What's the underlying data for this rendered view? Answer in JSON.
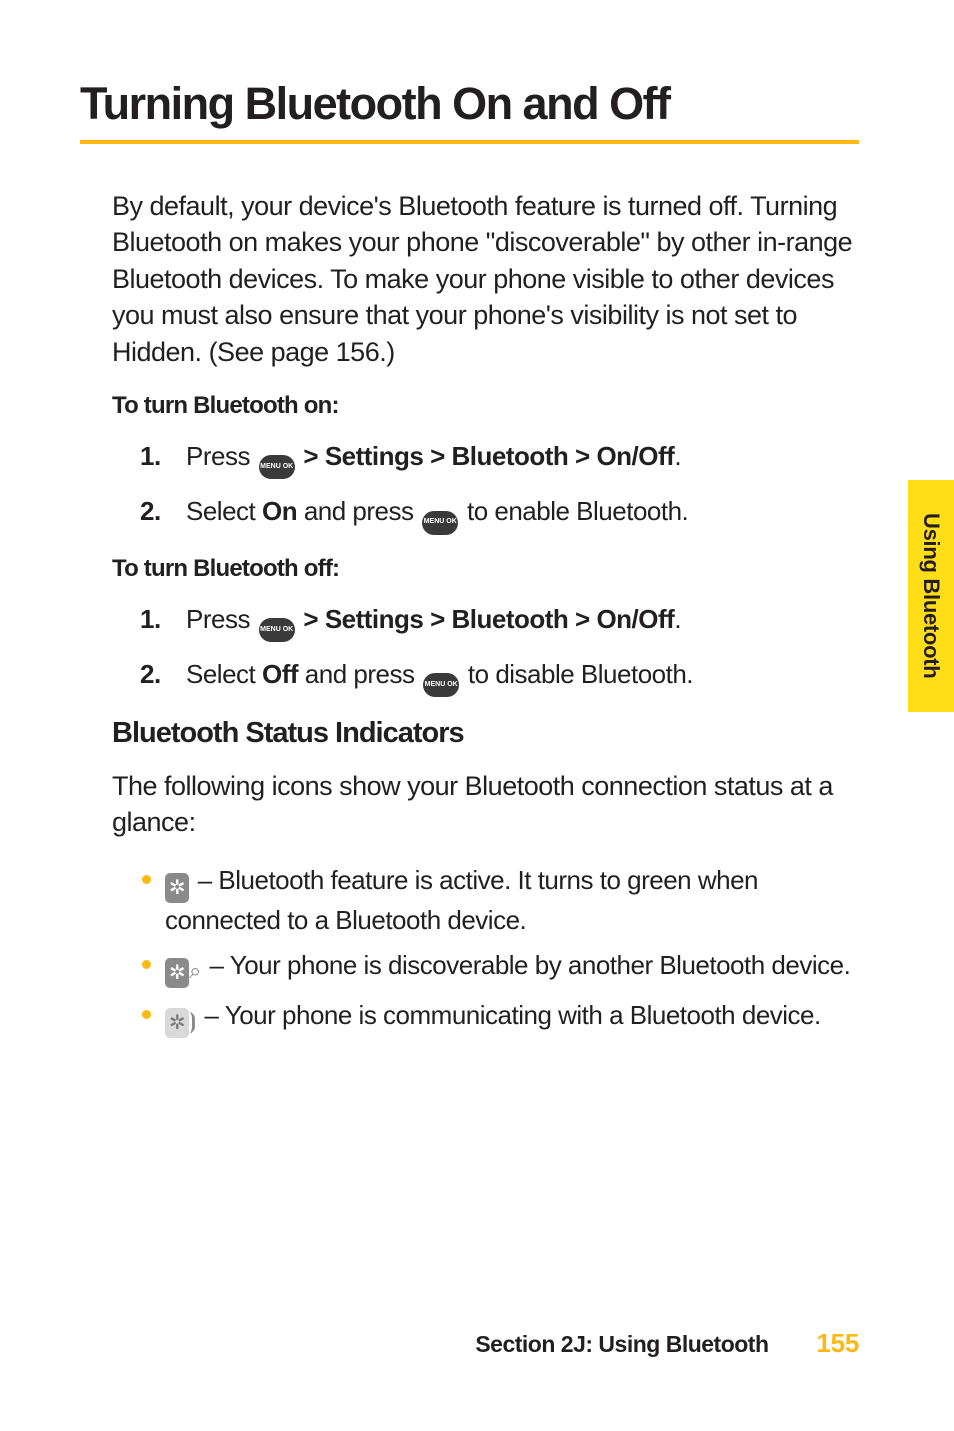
{
  "title": "Turning Bluetooth On and Off",
  "intro": "By default, your device's Bluetooth feature is turned off. Turning Bluetooth on makes your phone \"discoverable\" by other in-range Bluetooth devices. To make your phone visible to other devices you must also ensure that your phone's visibility is not set to Hidden. (See page 156.)",
  "menu_icon_label": "MENU\nOK",
  "on": {
    "heading": "To turn Bluetooth on:",
    "step1_pre": "Press ",
    "step1_path": " > Settings > Bluetooth > On/Off",
    "step1_post": ".",
    "step2_pre": "Select ",
    "step2_bold": "On",
    "step2_mid": " and press ",
    "step2_post": " to enable Bluetooth."
  },
  "off": {
    "heading": "To turn Bluetooth off:",
    "step1_pre": "Press ",
    "step1_path": " > Settings > Bluetooth > On/Off",
    "step1_post": ".",
    "step2_pre": "Select ",
    "step2_bold": "Off",
    "step2_mid": " and press ",
    "step2_post": " to disable Bluetooth."
  },
  "indicators": {
    "heading": "Bluetooth Status Indicators",
    "intro": "The following icons show your Bluetooth connection status at a glance:",
    "items": [
      " – Bluetooth feature is active. It turns to green when connected to a Bluetooth device.",
      " – Your phone is discoverable by another Bluetooth device.",
      " – Your phone is communicating with a Bluetooth device."
    ]
  },
  "side_tab": "Using Bluetooth",
  "footer_section": "Section 2J: Using Bluetooth",
  "footer_page": "155",
  "nums": {
    "n1": "1.",
    "n2": "2."
  },
  "bt_glyph": "✲",
  "colors": {
    "accent": "#fdb913",
    "tab": "#ffde17",
    "text": "#231f20",
    "icon_gray": "#8a8a8a"
  }
}
